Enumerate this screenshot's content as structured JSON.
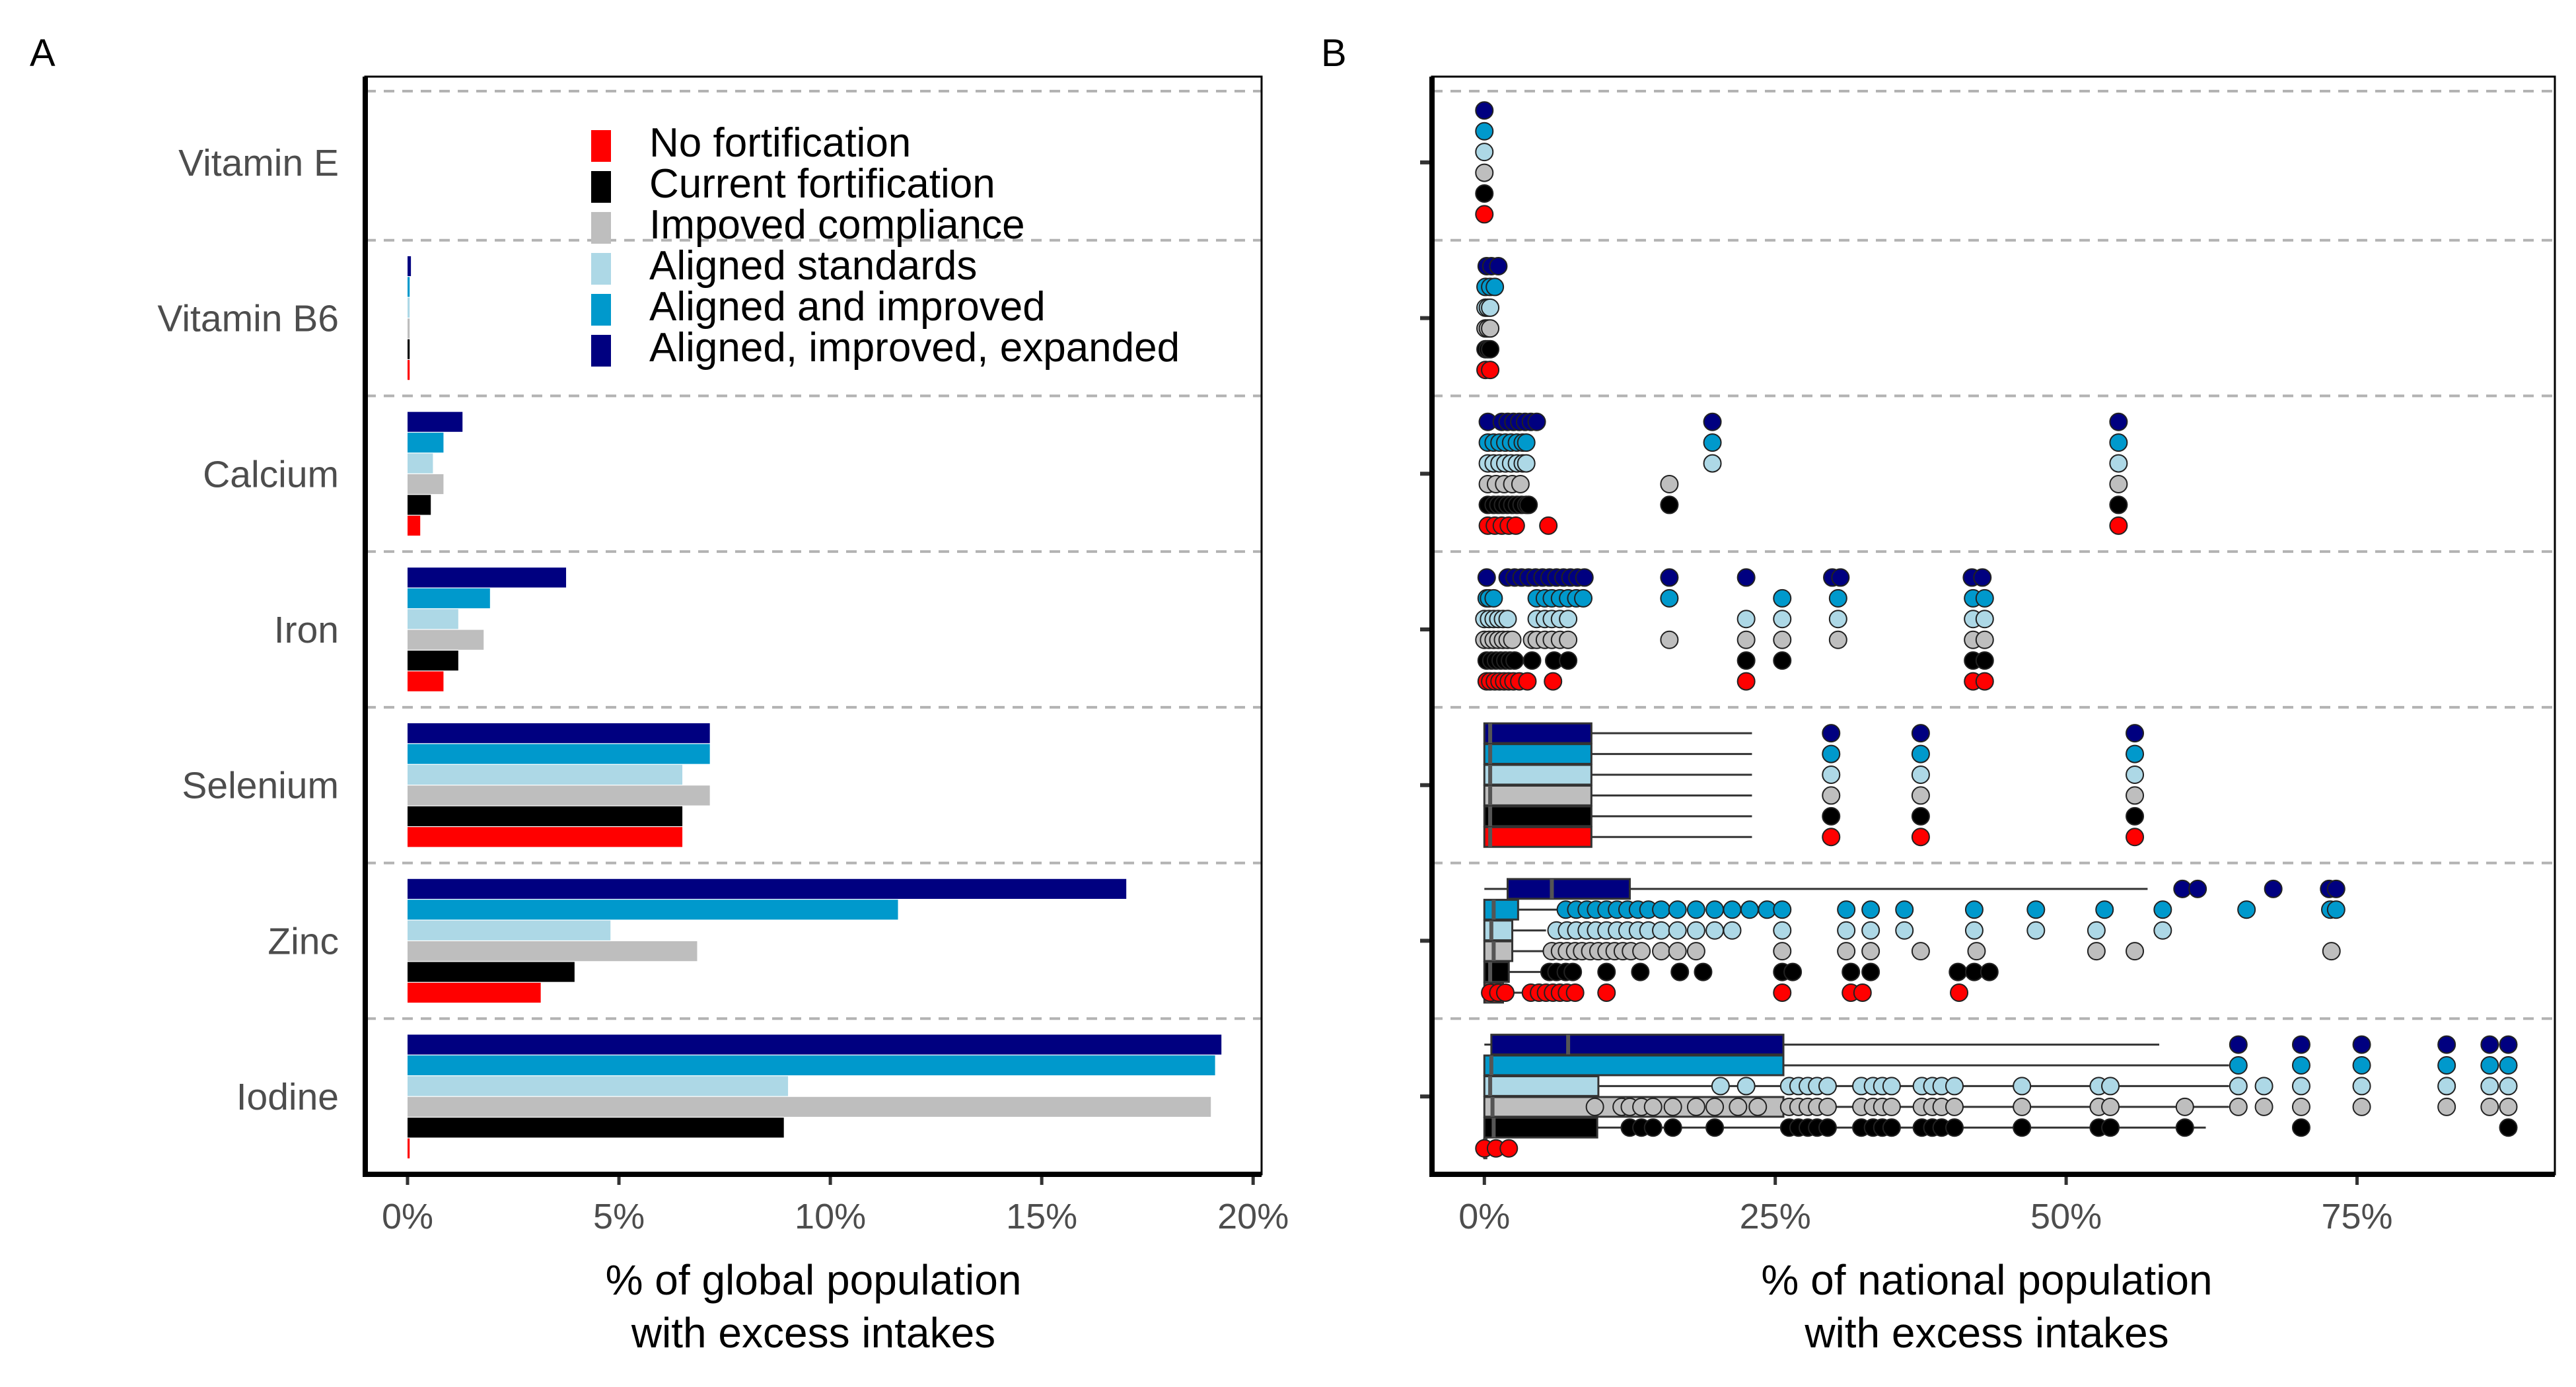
{
  "chart_data": [
    {
      "panel": "A",
      "type": "bar",
      "orientation": "horizontal",
      "categories": [
        "Vitamin E",
        "Vitamin B6",
        "Calcium",
        "Iron",
        "Selenium",
        "Zinc",
        "Iodine"
      ],
      "series": [
        {
          "name": "No fortification",
          "color": "#ff0000",
          "values": [
            0,
            0.05,
            0.3,
            0.85,
            6.5,
            3.15,
            0.05
          ]
        },
        {
          "name": "Current fortification",
          "color": "#000000",
          "values": [
            0,
            0.05,
            0.55,
            1.2,
            6.5,
            3.95,
            8.9
          ]
        },
        {
          "name": "Impoved compliance",
          "color": "#bebebe",
          "values": [
            0,
            0.05,
            0.85,
            1.8,
            7.15,
            6.85,
            19.0
          ]
        },
        {
          "name": "Aligned standards",
          "color": "#add8e6",
          "values": [
            0,
            0.05,
            0.6,
            1.2,
            6.5,
            4.8,
            9.0
          ]
        },
        {
          "name": "Aligned and improved",
          "color": "#0099cc",
          "values": [
            0,
            0.05,
            0.85,
            1.95,
            7.15,
            11.6,
            19.1
          ]
        },
        {
          "name": "Aligned, improved, expanded",
          "color": "#000080",
          "values": [
            0,
            0.08,
            1.3,
            3.75,
            7.15,
            17.0,
            19.25
          ]
        }
      ],
      "xlabel": "% of global population with excess intakes",
      "xlabel_lines": [
        "% of global population",
        "with excess intakes"
      ],
      "xlim": [
        -1,
        20.2
      ],
      "xticks": [
        0,
        5,
        10,
        15,
        20
      ],
      "xtick_labels": [
        "0%",
        "5%",
        "10%",
        "15%",
        "20%"
      ],
      "legend_position": "top-right"
    },
    {
      "panel": "B",
      "type": "scatter",
      "subtype": "boxplot with points",
      "categories": [
        "Vitamin E",
        "Vitamin B6",
        "Calcium",
        "Iron",
        "Selenium",
        "Zinc",
        "Iodine"
      ],
      "scenarios": [
        "No fortification",
        "Current fortification",
        "Impoved compliance",
        "Aligned standards",
        "Aligned and improved",
        "Aligned, improved, expanded"
      ],
      "scenario_colors": [
        "#ff0000",
        "#000000",
        "#bebebe",
        "#add8e6",
        "#0099cc",
        "#000080"
      ],
      "boxes": {
        "Selenium": [
          [
            0,
            0,
            0.5,
            9.2,
            23
          ],
          [
            0,
            0,
            0.5,
            9.2,
            23
          ],
          [
            0,
            0,
            0.5,
            9.2,
            23
          ],
          [
            0,
            0,
            0.5,
            9.2,
            23
          ],
          [
            0,
            0,
            0.5,
            9.2,
            23
          ],
          [
            0,
            0,
            0.5,
            9.2,
            23
          ]
        ],
        "Zinc": [
          [
            0,
            0,
            0.3,
            1.6,
            3.5
          ],
          [
            0,
            0,
            0.5,
            2.1,
            5.1
          ],
          [
            0,
            0,
            0.8,
            2.4,
            5.5
          ],
          [
            0,
            0,
            0.6,
            2.4,
            5.3
          ],
          [
            0,
            0,
            0.8,
            2.9,
            6.5
          ],
          [
            0,
            2.0,
            5.8,
            12.5,
            57
          ]
        ],
        "Iodine": [
          [
            0,
            0,
            0.05,
            0.1,
            0.3
          ],
          [
            0,
            0,
            0.8,
            9.7,
            62
          ],
          [
            0,
            0,
            0.7,
            25.7,
            64
          ],
          [
            0,
            0,
            0.5,
            9.8,
            64
          ],
          [
            0,
            0,
            0.6,
            25.7,
            64
          ],
          [
            0,
            0.6,
            7.2,
            25.7,
            58
          ]
        ]
      },
      "points": {
        "Vitamin E": [
          [
            0
          ],
          [
            0
          ],
          [
            0
          ],
          [
            0
          ],
          [
            0
          ],
          [
            0
          ]
        ],
        "Vitamin B6": [
          [
            0.1,
            0.5
          ],
          [
            0.1,
            0.3,
            0.5
          ],
          [
            0.1,
            0.3,
            0.5
          ],
          [
            0.1,
            0.3,
            0.5
          ],
          [
            0.1,
            0.5,
            0.9
          ],
          [
            0.2,
            0.6,
            1.2
          ]
        ],
        "Calcium": [
          [
            0.3,
            0.9,
            1.5,
            2.1,
            2.7,
            5.5,
            54.5
          ],
          [
            0.3,
            0.8,
            1.2,
            1.6,
            2,
            2.4,
            2.8,
            3.2,
            3.6,
            3.8,
            15.9,
            54.5
          ],
          [
            0.3,
            1.0,
            1.7,
            2.4,
            3.1,
            15.9,
            54.5
          ],
          [
            0.3,
            0.8,
            1.3,
            1.8,
            2.3,
            2.8,
            3.3,
            3.6,
            19.6,
            54.5
          ],
          [
            0.3,
            0.8,
            1.3,
            1.8,
            2.3,
            2.8,
            3.3,
            3.6,
            19.6,
            54.5
          ],
          [
            0.3,
            1.5,
            2.0,
            2.5,
            3.0,
            3.5,
            4.0,
            4.5,
            19.6,
            54.5
          ]
        ],
        "Iron": [
          [
            0.2,
            0.5,
            0.9,
            1.3,
            1.7,
            2.1,
            2.5,
            3.0,
            3.7,
            5.9,
            22.5,
            42,
            43
          ],
          [
            0.2,
            0.6,
            1.0,
            1.4,
            1.8,
            2.2,
            2.6,
            4.1,
            6.0,
            7.2,
            22.5,
            25.6,
            42,
            43
          ],
          [
            0,
            0.4,
            0.8,
            1.2,
            1.6,
            2.0,
            2.4,
            4.1,
            4.5,
            5.2,
            5.8,
            6.5,
            7.2,
            15.9,
            22.5,
            25.6,
            30.4,
            42,
            43
          ],
          [
            0,
            0.4,
            0.8,
            1.2,
            1.6,
            2.0,
            4.5,
            5.2,
            5.8,
            6.5,
            7.2,
            22.5,
            25.6,
            30.4,
            42,
            43
          ],
          [
            0.2,
            0.4,
            0.8,
            4.5,
            5.2,
            5.8,
            6.5,
            7.2,
            7.9,
            8.5,
            15.9,
            25.6,
            30.4,
            42,
            43
          ],
          [
            0.2,
            2.0,
            2.6,
            3.2,
            3.8,
            4.4,
            5.0,
            5.6,
            6.2,
            6.8,
            7.4,
            8.0,
            8.6,
            15.9,
            22.5,
            29.9,
            30.6,
            41.9,
            42.8
          ]
        ],
        "Selenium": [
          [
            29.8,
            37.5,
            55.9
          ],
          [
            29.8,
            37.5,
            55.9
          ],
          [
            29.8,
            37.5,
            55.9
          ],
          [
            29.8,
            37.5,
            55.9
          ],
          [
            29.8,
            37.5,
            55.9
          ],
          [
            29.8,
            37.5,
            55.9
          ]
        ],
        "Zinc": [
          [
            0.5,
            1.2,
            1.8,
            4.0,
            4.7,
            5.3,
            5.9,
            6.5,
            7.1,
            7.8,
            10.5,
            25.6,
            31.5,
            32.5,
            40.8
          ],
          [
            5.6,
            6.2,
            7.0,
            7.6,
            10.5,
            13.4,
            16.8,
            18.8,
            25.6,
            26.5,
            31.5,
            33.2,
            40.7,
            42.1,
            43.4
          ],
          [
            5.8,
            6.5,
            7.1,
            7.8,
            8.4,
            9.1,
            9.8,
            10.5,
            11.2,
            11.9,
            12.6,
            13.5,
            15.2,
            16.6,
            18.2,
            25.6,
            31.1,
            33.2,
            37.5,
            42.3,
            52.6,
            55.9,
            72.8
          ],
          [
            6.2,
            7.1,
            7.9,
            8.8,
            9.6,
            10.5,
            11.4,
            12.3,
            13.2,
            14.1,
            15.2,
            16.6,
            18.2,
            19.8,
            21.3,
            25.6,
            31.1,
            33.2,
            36.1,
            42.1,
            47.4,
            52.6,
            58.3
          ],
          [
            7.0,
            7.9,
            8.8,
            9.6,
            10.5,
            11.4,
            12.3,
            13.2,
            14.1,
            15.2,
            16.6,
            18.2,
            19.8,
            21.3,
            22.8,
            24.3,
            25.6,
            31.1,
            33.2,
            36.1,
            42.1,
            47.4,
            53.3,
            58.3,
            65.5,
            72.7,
            73.2
          ],
          [
            60.0,
            61.3,
            67.8,
            72.6,
            73.2
          ]
        ],
        "Iodine": [
          [
            0,
            1.0,
            2.1
          ],
          [
            12.5,
            13.5,
            14.5,
            16.2,
            19.8,
            26.2,
            27.0,
            27.8,
            28.6,
            29.5,
            32.4,
            33.4,
            34.2,
            35.0,
            37.6,
            38.5,
            39.3,
            40.4,
            46.2,
            52.8,
            53.8,
            60.2,
            70.2,
            88.0
          ],
          [
            9.5,
            11.8,
            12.5,
            13.5,
            14.5,
            16.2,
            18.2,
            19.8,
            21.8,
            23.5,
            26.2,
            27.0,
            27.8,
            28.6,
            29.5,
            32.4,
            33.4,
            34.2,
            35.0,
            37.6,
            38.5,
            39.3,
            40.4,
            46.2,
            52.8,
            53.8,
            60.2,
            64.8,
            67.0,
            70.2,
            75.4,
            82.7,
            86.4,
            88.0
          ],
          [
            20.3,
            22.5,
            26.2,
            27.0,
            27.8,
            28.6,
            29.5,
            32.4,
            33.4,
            34.2,
            35.0,
            37.6,
            38.5,
            39.3,
            40.4,
            46.2,
            52.8,
            53.8,
            64.8,
            67.0,
            70.2,
            75.4,
            82.7,
            86.4,
            88.0
          ],
          [
            64.8,
            70.2,
            75.4,
            82.7,
            86.4,
            88.0
          ],
          [
            64.8,
            70.2,
            75.4,
            82.7,
            86.4,
            88.0
          ]
        ]
      },
      "xlabel": "% of national population with excess intakes",
      "xlabel_lines": [
        "% of national population",
        "with excess intakes"
      ],
      "xlim": [
        -4.5,
        92
      ],
      "xticks": [
        0,
        25,
        50,
        75
      ],
      "xtick_labels": [
        "0%",
        "25%",
        "50%",
        "75%"
      ]
    }
  ],
  "panels": {
    "A": {
      "letter": "A"
    },
    "B": {
      "letter": "B"
    }
  }
}
